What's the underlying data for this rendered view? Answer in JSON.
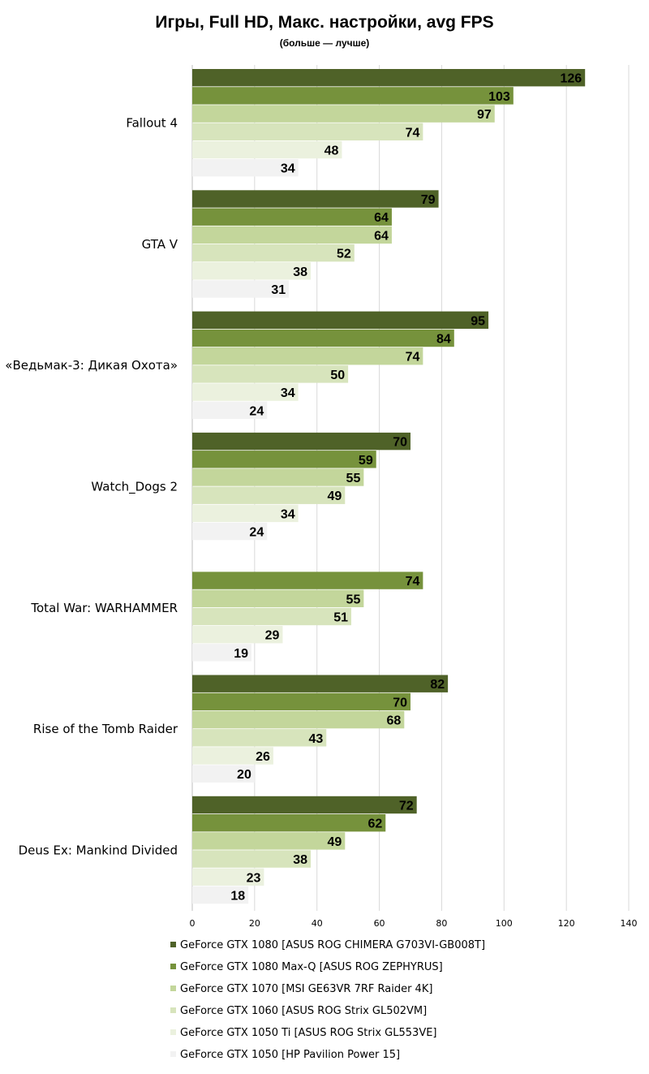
{
  "chart_data": {
    "type": "bar",
    "orientation": "horizontal",
    "title": "Игры, Full HD, Макс. настройки, avg FPS",
    "subtitle": "(больше — лучше)",
    "xlim": [
      0,
      140
    ],
    "xticks": [
      0,
      20,
      40,
      60,
      80,
      100,
      120,
      140
    ],
    "grid": true,
    "legend_position": "bottom",
    "categories": [
      "Fallout 4",
      "GTA V",
      "«Ведьмак-3: Дикая Охота»",
      "Watch_Dogs 2",
      "Total War: WARHAMMER",
      "Rise of the Tomb Raider",
      "Deus Ex: Mankind Divided"
    ],
    "series": [
      {
        "name": "GeForce GTX 1080 [ASUS ROG CHIMERA G703VI-GB008T]",
        "color": "#4f6228",
        "values": [
          126,
          79,
          95,
          70,
          null,
          82,
          72
        ]
      },
      {
        "name": "GeForce GTX 1080 Max-Q [ASUS ROG ZEPHYRUS]",
        "color": "#76923c",
        "values": [
          103,
          64,
          84,
          59,
          74,
          70,
          62
        ]
      },
      {
        "name": "GeForce GTX 1070 [MSI GE63VR 7RF Raider 4K]",
        "color": "#c3d69b",
        "values": [
          97,
          64,
          74,
          55,
          55,
          68,
          49
        ]
      },
      {
        "name": "GeForce GTX 1060 [ASUS ROG Strix GL502VM]",
        "color": "#d7e4bc",
        "values": [
          74,
          52,
          50,
          49,
          51,
          43,
          38
        ]
      },
      {
        "name": "GeForce GTX 1050 Ti [ASUS ROG Strix GL553VE]",
        "color": "#ebf1de",
        "values": [
          48,
          38,
          34,
          34,
          29,
          26,
          23
        ]
      },
      {
        "name": "GeForce GTX 1050 [HP Pavilion Power 15]",
        "color": "#f2f2f2",
        "values": [
          34,
          31,
          24,
          24,
          19,
          20,
          18
        ]
      }
    ]
  }
}
